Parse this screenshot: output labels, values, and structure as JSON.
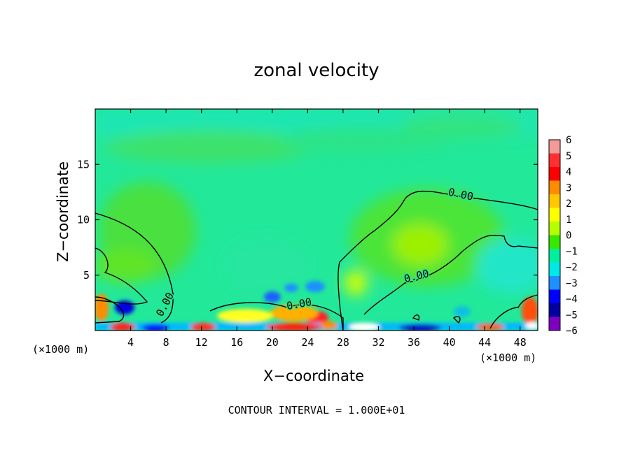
{
  "chart_data": {
    "type": "heatmap",
    "title": "zonal velocity",
    "xlabel": "X−coordinate",
    "ylabel": "Z−coordinate",
    "x_unit": "(×1000 m)",
    "xlim": [
      0,
      50
    ],
    "ylim": [
      0,
      20
    ],
    "x_ticks": [
      4,
      8,
      12,
      16,
      20,
      24,
      28,
      32,
      36,
      40,
      44,
      48
    ],
    "y_ticks": [
      5,
      10,
      15
    ],
    "colorbar": {
      "ticks": [
        6,
        5,
        4,
        3,
        2,
        1,
        0,
        -1,
        -2,
        -3,
        -4,
        -5,
        -6
      ],
      "colors": [
        "#f39a9a",
        "#ff3030",
        "#ff0000",
        "#ff8c00",
        "#ffc800",
        "#ffff00",
        "#b4ff00",
        "#38e800",
        "#00f0a0",
        "#00e8e8",
        "#1e90ff",
        "#0000ff",
        "#0000a0",
        "#8000c0"
      ]
    },
    "contour_labels": [
      "0.00",
      "0.00",
      "0.00",
      "0.00"
    ],
    "footer": "CONTOUR INTERVAL = 1.000E+01"
  }
}
